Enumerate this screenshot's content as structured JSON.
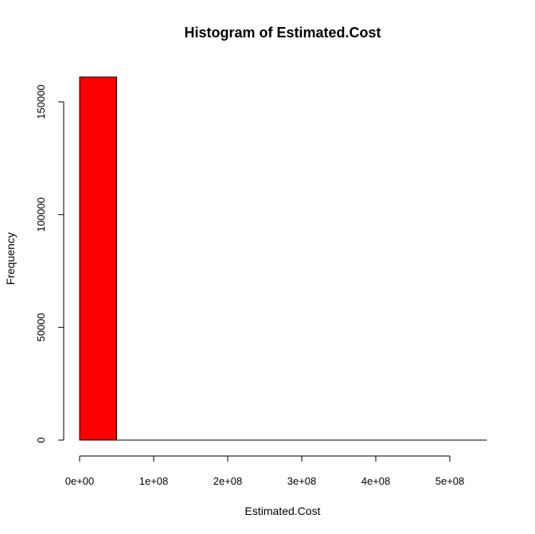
{
  "chart_data": {
    "type": "bar",
    "title": "Histogram of Estimated.Cost",
    "xlabel": "Estimated.Cost",
    "ylabel": "Frequency",
    "bins": [
      {
        "x0": 0,
        "x1": 50000000,
        "count": 161000
      },
      {
        "x0": 50000000,
        "x1": 100000000,
        "count": 0
      },
      {
        "x0": 100000000,
        "x1": 150000000,
        "count": 0
      },
      {
        "x0": 150000000,
        "x1": 200000000,
        "count": 0
      },
      {
        "x0": 200000000,
        "x1": 250000000,
        "count": 0
      },
      {
        "x0": 250000000,
        "x1": 300000000,
        "count": 0
      },
      {
        "x0": 300000000,
        "x1": 350000000,
        "count": 0
      },
      {
        "x0": 350000000,
        "x1": 400000000,
        "count": 0
      },
      {
        "x0": 400000000,
        "x1": 450000000,
        "count": 0
      },
      {
        "x0": 450000000,
        "x1": 500000000,
        "count": 0
      },
      {
        "x0": 500000000,
        "x1": 550000000,
        "count": 0
      }
    ],
    "bar_color": "#ff0000",
    "x_ticks": [
      {
        "value": 0,
        "label": "0e+00"
      },
      {
        "value": 100000000,
        "label": "1e+08"
      },
      {
        "value": 200000000,
        "label": "2e+08"
      },
      {
        "value": 300000000,
        "label": "3e+08"
      },
      {
        "value": 400000000,
        "label": "4e+08"
      },
      {
        "value": 500000000,
        "label": "5e+08"
      }
    ],
    "y_ticks": [
      {
        "value": 0,
        "label": "0"
      },
      {
        "value": 50000,
        "label": "50000"
      },
      {
        "value": 100000,
        "label": "100000"
      },
      {
        "value": 150000,
        "label": "150000"
      }
    ],
    "xlim": [
      0,
      550000000
    ],
    "ylim": [
      0,
      161000
    ],
    "grid": false,
    "legend": "none"
  }
}
